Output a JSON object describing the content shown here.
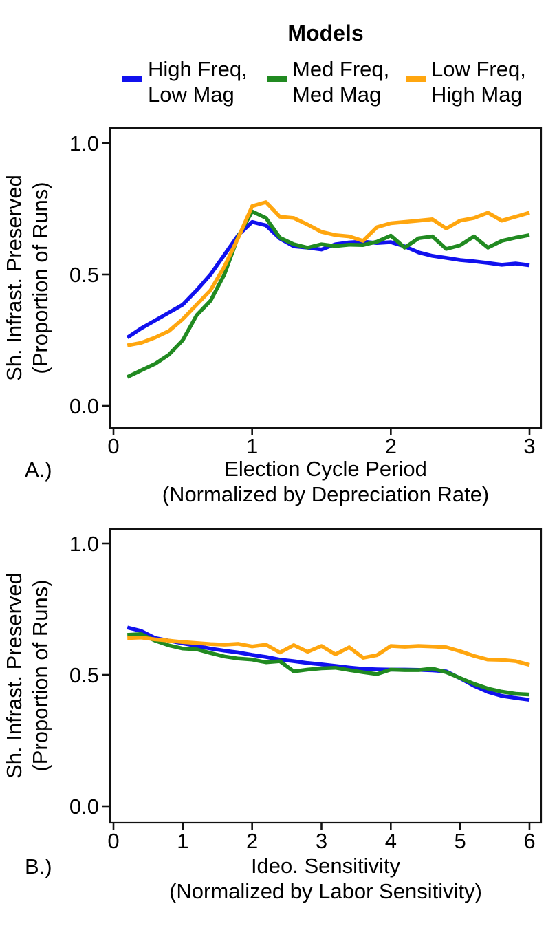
{
  "legend": {
    "title": "Models",
    "items": [
      {
        "line1": "High Freq,",
        "line2": "Low Mag",
        "color": "#1111ee"
      },
      {
        "line1": "Med Freq,",
        "line2": "Med Mag",
        "color": "#218a21"
      },
      {
        "line1": "Low Freq,",
        "line2": "High Mag",
        "color": "#ffa60f"
      }
    ]
  },
  "chart_data": [
    {
      "type": "line",
      "panel_label": "A.)",
      "title": "",
      "xlabel_line1": "Election Cycle Period",
      "xlabel_line2": "(Normalized by Depreciation Rate)",
      "ylabel_line1": "Sh. Infrast. Preserved",
      "ylabel_line2": "(Proportion of Runs)",
      "xlim": [
        -0.025,
        3.085
      ],
      "ylim": [
        -0.084,
        1.058
      ],
      "xticks": [
        0,
        1,
        2,
        3
      ],
      "xtick_labels": [
        "0",
        "1",
        "2",
        "3"
      ],
      "yticks": [
        0.0,
        0.5,
        1.0
      ],
      "ytick_labels": [
        "0.0",
        "0.5",
        "1.0"
      ],
      "grid": false,
      "legend_position": "top",
      "x": [
        0.1,
        0.2,
        0.3,
        0.4,
        0.5,
        0.6,
        0.7,
        0.8,
        0.9,
        1.0,
        1.1,
        1.2,
        1.3,
        1.4,
        1.5,
        1.6,
        1.7,
        1.8,
        1.9,
        2.0,
        2.1,
        2.2,
        2.3,
        2.4,
        2.5,
        2.6,
        2.7,
        2.8,
        2.9,
        3.0
      ],
      "series": [
        {
          "name": "High Freq, Low Mag",
          "color": "#1111ee",
          "values": [
            0.26,
            0.295,
            0.325,
            0.355,
            0.385,
            0.44,
            0.5,
            0.575,
            0.65,
            0.7,
            0.687,
            0.637,
            0.607,
            0.602,
            0.595,
            0.615,
            0.622,
            0.625,
            0.62,
            0.623,
            0.607,
            0.584,
            0.571,
            0.563,
            0.555,
            0.55,
            0.544,
            0.537,
            0.542,
            0.535
          ]
        },
        {
          "name": "Med Freq, Med Mag",
          "color": "#218a21",
          "values": [
            0.11,
            0.135,
            0.16,
            0.195,
            0.25,
            0.345,
            0.4,
            0.5,
            0.645,
            0.74,
            0.715,
            0.64,
            0.615,
            0.602,
            0.615,
            0.608,
            0.613,
            0.612,
            0.625,
            0.648,
            0.602,
            0.638,
            0.645,
            0.597,
            0.611,
            0.645,
            0.602,
            0.628,
            0.64,
            0.65
          ]
        },
        {
          "name": "Low Freq, High Mag",
          "color": "#ffa60f",
          "values": [
            0.23,
            0.24,
            0.26,
            0.285,
            0.33,
            0.385,
            0.44,
            0.53,
            0.64,
            0.76,
            0.775,
            0.72,
            0.715,
            0.69,
            0.662,
            0.65,
            0.645,
            0.628,
            0.68,
            0.695,
            0.7,
            0.705,
            0.71,
            0.675,
            0.705,
            0.715,
            0.735,
            0.705,
            0.72,
            0.735
          ]
        }
      ]
    },
    {
      "type": "line",
      "panel_label": "B.)",
      "title": "",
      "xlabel_line1": "Ideo. Sensitivity",
      "xlabel_line2": "(Normalized by Labor Sensitivity)",
      "ylabel_line1": "Sh. Infrast. Preserved",
      "ylabel_line2": "(Proportion of Runs)",
      "xlim": [
        -0.05,
        6.17
      ],
      "ylim": [
        -0.063,
        1.055
      ],
      "xticks": [
        0,
        1,
        2,
        3,
        4,
        5,
        6
      ],
      "xtick_labels": [
        "0",
        "1",
        "2",
        "3",
        "4",
        "5",
        "6"
      ],
      "yticks": [
        0.0,
        0.5,
        1.0
      ],
      "ytick_labels": [
        "0.0",
        "0.5",
        "1.0"
      ],
      "grid": false,
      "legend_position": "top",
      "x": [
        0.2,
        0.4,
        0.6,
        0.8,
        1.0,
        1.2,
        1.4,
        1.6,
        1.8,
        2.0,
        2.2,
        2.4,
        2.6,
        2.8,
        3.0,
        3.2,
        3.4,
        3.6,
        3.8,
        4.0,
        4.2,
        4.4,
        4.6,
        4.8,
        5.0,
        5.2,
        5.4,
        5.6,
        5.8,
        6.0
      ],
      "series": [
        {
          "name": "High Freq, Low Mag",
          "color": "#1111ee",
          "values": [
            0.68,
            0.667,
            0.64,
            0.63,
            0.62,
            0.61,
            0.6,
            0.592,
            0.585,
            0.576,
            0.568,
            0.558,
            0.552,
            0.545,
            0.54,
            0.534,
            0.528,
            0.523,
            0.521,
            0.52,
            0.52,
            0.519,
            0.517,
            0.513,
            0.487,
            0.458,
            0.435,
            0.42,
            0.412,
            0.405
          ]
        },
        {
          "name": "Med Freq, Med Mag",
          "color": "#218a21",
          "values": [
            0.652,
            0.655,
            0.63,
            0.612,
            0.6,
            0.597,
            0.583,
            0.57,
            0.562,
            0.558,
            0.548,
            0.552,
            0.513,
            0.52,
            0.525,
            0.527,
            0.518,
            0.51,
            0.503,
            0.52,
            0.518,
            0.518,
            0.524,
            0.51,
            0.488,
            0.466,
            0.448,
            0.436,
            0.428,
            0.425
          ]
        },
        {
          "name": "Low Freq, High Mag",
          "color": "#ffa60f",
          "values": [
            0.64,
            0.642,
            0.635,
            0.63,
            0.625,
            0.621,
            0.617,
            0.615,
            0.618,
            0.608,
            0.615,
            0.585,
            0.613,
            0.588,
            0.61,
            0.578,
            0.605,
            0.565,
            0.575,
            0.61,
            0.607,
            0.61,
            0.608,
            0.605,
            0.59,
            0.572,
            0.558,
            0.557,
            0.552,
            0.538
          ]
        }
      ]
    }
  ]
}
